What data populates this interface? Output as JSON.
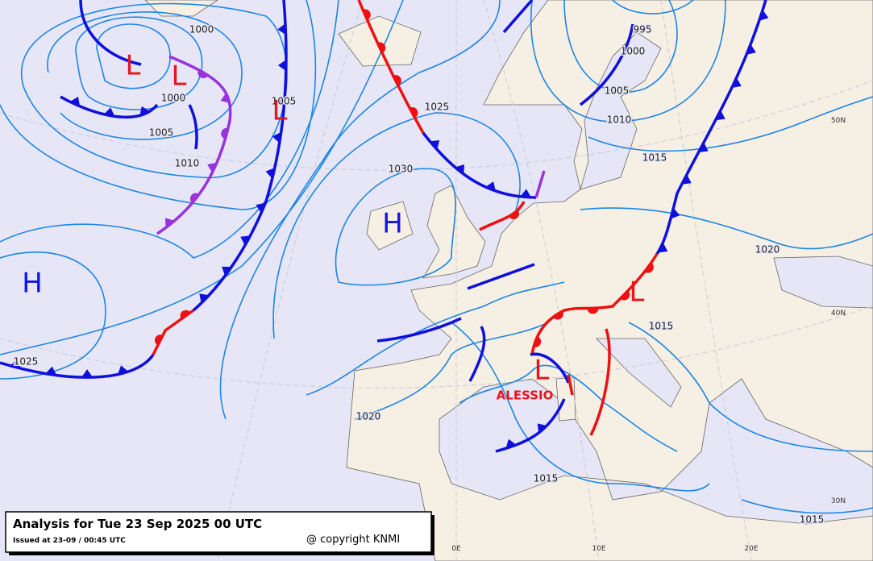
{
  "caption": {
    "title": "Analysis for Tue 23 Sep 2025 00 UTC",
    "issued": "Issued at 23-09 / 00:45 UTC",
    "copyright": "@ copyright KNMI"
  },
  "pressure_centers": [
    "L",
    "L",
    "L",
    "H",
    "H",
    "L",
    "L"
  ],
  "storm_name": "ALESSIO",
  "isobar_labels": [
    "1000",
    "995",
    "1000",
    "1000",
    "1005",
    "1005",
    "1005",
    "1010",
    "1010",
    "1025",
    "1030",
    "1015",
    "1020",
    "1015",
    "1025",
    "1020",
    "1015",
    "1015"
  ],
  "graticule_labels": [
    "50N",
    "40N",
    "30N",
    "0E",
    "10E",
    "20E"
  ]
}
